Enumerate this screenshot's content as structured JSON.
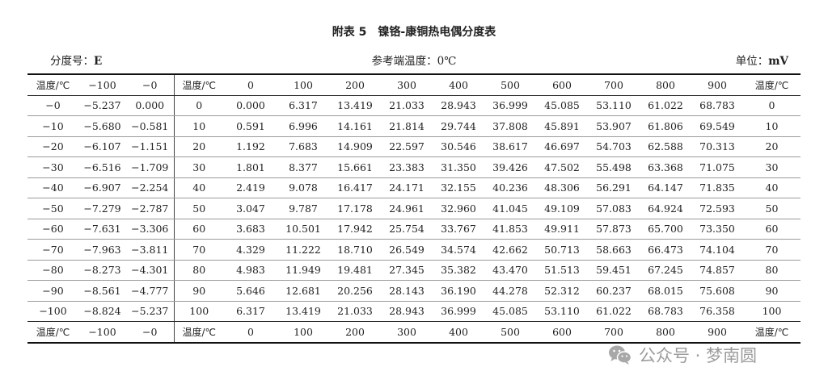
{
  "title": "附表 5　镍铬-康铜热电偶分度表",
  "index_label": "分度号：",
  "index_value": "E",
  "ref_label": "参考端温度：",
  "ref_value": "0℃",
  "unit_label": "单位：",
  "unit_value": "mV",
  "header": [
    "温度/℃",
    "−100",
    "−0",
    "温度/℃",
    "0",
    "100",
    "200",
    "300",
    "400",
    "500",
    "600",
    "700",
    "800",
    "900",
    "温度/℃"
  ],
  "rows": [
    [
      "−0",
      "−5.237",
      "0.000",
      "0",
      "0.000",
      "6.317",
      "13.419",
      "21.033",
      "28.943",
      "36.999",
      "45.085",
      "53.110",
      "61.022",
      "68.783",
      "0"
    ],
    [
      "−10",
      "−5.680",
      "−0.581",
      "10",
      "0.591",
      "6.996",
      "14.161",
      "21.814",
      "29.744",
      "37.808",
      "45.891",
      "53.907",
      "61.806",
      "69.549",
      "10"
    ],
    [
      "−20",
      "−6.107",
      "−1.151",
      "20",
      "1.192",
      "7.683",
      "14.909",
      "22.597",
      "30.546",
      "38.617",
      "46.697",
      "54.703",
      "62.588",
      "70.313",
      "20"
    ],
    [
      "−30",
      "−6.516",
      "−1.709",
      "30",
      "1.801",
      "8.377",
      "15.661",
      "23.383",
      "31.350",
      "39.426",
      "47.502",
      "55.498",
      "63.368",
      "71.075",
      "30"
    ],
    [
      "−40",
      "−6.907",
      "−2.254",
      "40",
      "2.419",
      "9.078",
      "16.417",
      "24.171",
      "32.155",
      "40.236",
      "48.306",
      "56.291",
      "64.147",
      "71.835",
      "40"
    ],
    [
      "−50",
      "−7.279",
      "−2.787",
      "50",
      "3.047",
      "9.787",
      "17.178",
      "24.961",
      "32.960",
      "41.045",
      "49.109",
      "57.083",
      "64.924",
      "72.593",
      "50"
    ],
    [
      "−60",
      "−7.631",
      "−3.306",
      "60",
      "3.683",
      "10.501",
      "17.942",
      "25.754",
      "33.767",
      "41.853",
      "49.911",
      "57.873",
      "65.700",
      "73.350",
      "60"
    ],
    [
      "−70",
      "−7.963",
      "−3.811",
      "70",
      "4.329",
      "11.222",
      "18.710",
      "26.549",
      "34.574",
      "42.662",
      "50.713",
      "58.663",
      "66.473",
      "74.104",
      "70"
    ],
    [
      "−80",
      "−8.273",
      "−4.301",
      "80",
      "4.983",
      "11.949",
      "19.481",
      "27.345",
      "35.382",
      "43.470",
      "51.513",
      "59.451",
      "67.245",
      "74.857",
      "80"
    ],
    [
      "−90",
      "−8.561",
      "−4.777",
      "90",
      "5.646",
      "12.681",
      "20.256",
      "28.143",
      "36.190",
      "44.278",
      "52.312",
      "60.237",
      "68.015",
      "75.608",
      "90"
    ],
    [
      "−100",
      "−8.824",
      "−5.237",
      "100",
      "6.317",
      "13.419",
      "21.033",
      "28.943",
      "36.999",
      "45.085",
      "53.110",
      "61.022",
      "68.783",
      "76.358",
      "100"
    ]
  ],
  "footer": [
    "温度/℃",
    "−100",
    "−0",
    "温度/℃",
    "0",
    "100",
    "200",
    "300",
    "400",
    "500",
    "600",
    "700",
    "800",
    "900",
    "温度/℃"
  ],
  "watermark": {
    "text": "公众号 · 梦南圆",
    "icon": "wechat-icon",
    "color": "#9c9c9c"
  }
}
